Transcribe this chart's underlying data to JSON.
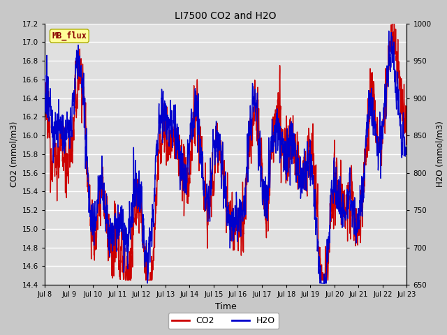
{
  "title": "LI7500 CO2 and H2O",
  "xlabel": "Time",
  "ylabel_left": "CO2 (mmol/m3)",
  "ylabel_right": "H2O (mmol/m3)",
  "co2_color": "#cc0000",
  "h2o_color": "#0000cc",
  "co2_ylim": [
    14.4,
    17.2
  ],
  "h2o_ylim": [
    650,
    1000
  ],
  "co2_yticks": [
    14.4,
    14.6,
    14.8,
    15.0,
    15.2,
    15.4,
    15.6,
    15.8,
    16.0,
    16.2,
    16.4,
    16.6,
    16.8,
    17.0,
    17.2
  ],
  "h2o_yticks": [
    650,
    700,
    750,
    800,
    850,
    900,
    950,
    1000
  ],
  "xtick_labels": [
    "Jul 8",
    "Jul 9",
    "Jul 10",
    "Jul 11",
    "Jul 12",
    "Jul 13",
    "Jul 14",
    "Jul 15",
    "Jul 16",
    "Jul 17",
    "Jul 18",
    "Jul 19",
    "Jul 20",
    "Jul 21",
    "Jul 22",
    "Jul 23"
  ],
  "label_box_text": "MB_flux",
  "label_box_facecolor": "#ffff99",
  "label_box_edgecolor": "#aaaa00",
  "label_box_textcolor": "#880000",
  "fig_facecolor": "#c8c8c8",
  "axes_facecolor": "#e0e0e0",
  "grid_color": "#ffffff",
  "legend_co2": "CO2",
  "legend_h2o": "H2O",
  "line_width": 1.0,
  "seed": 12345
}
